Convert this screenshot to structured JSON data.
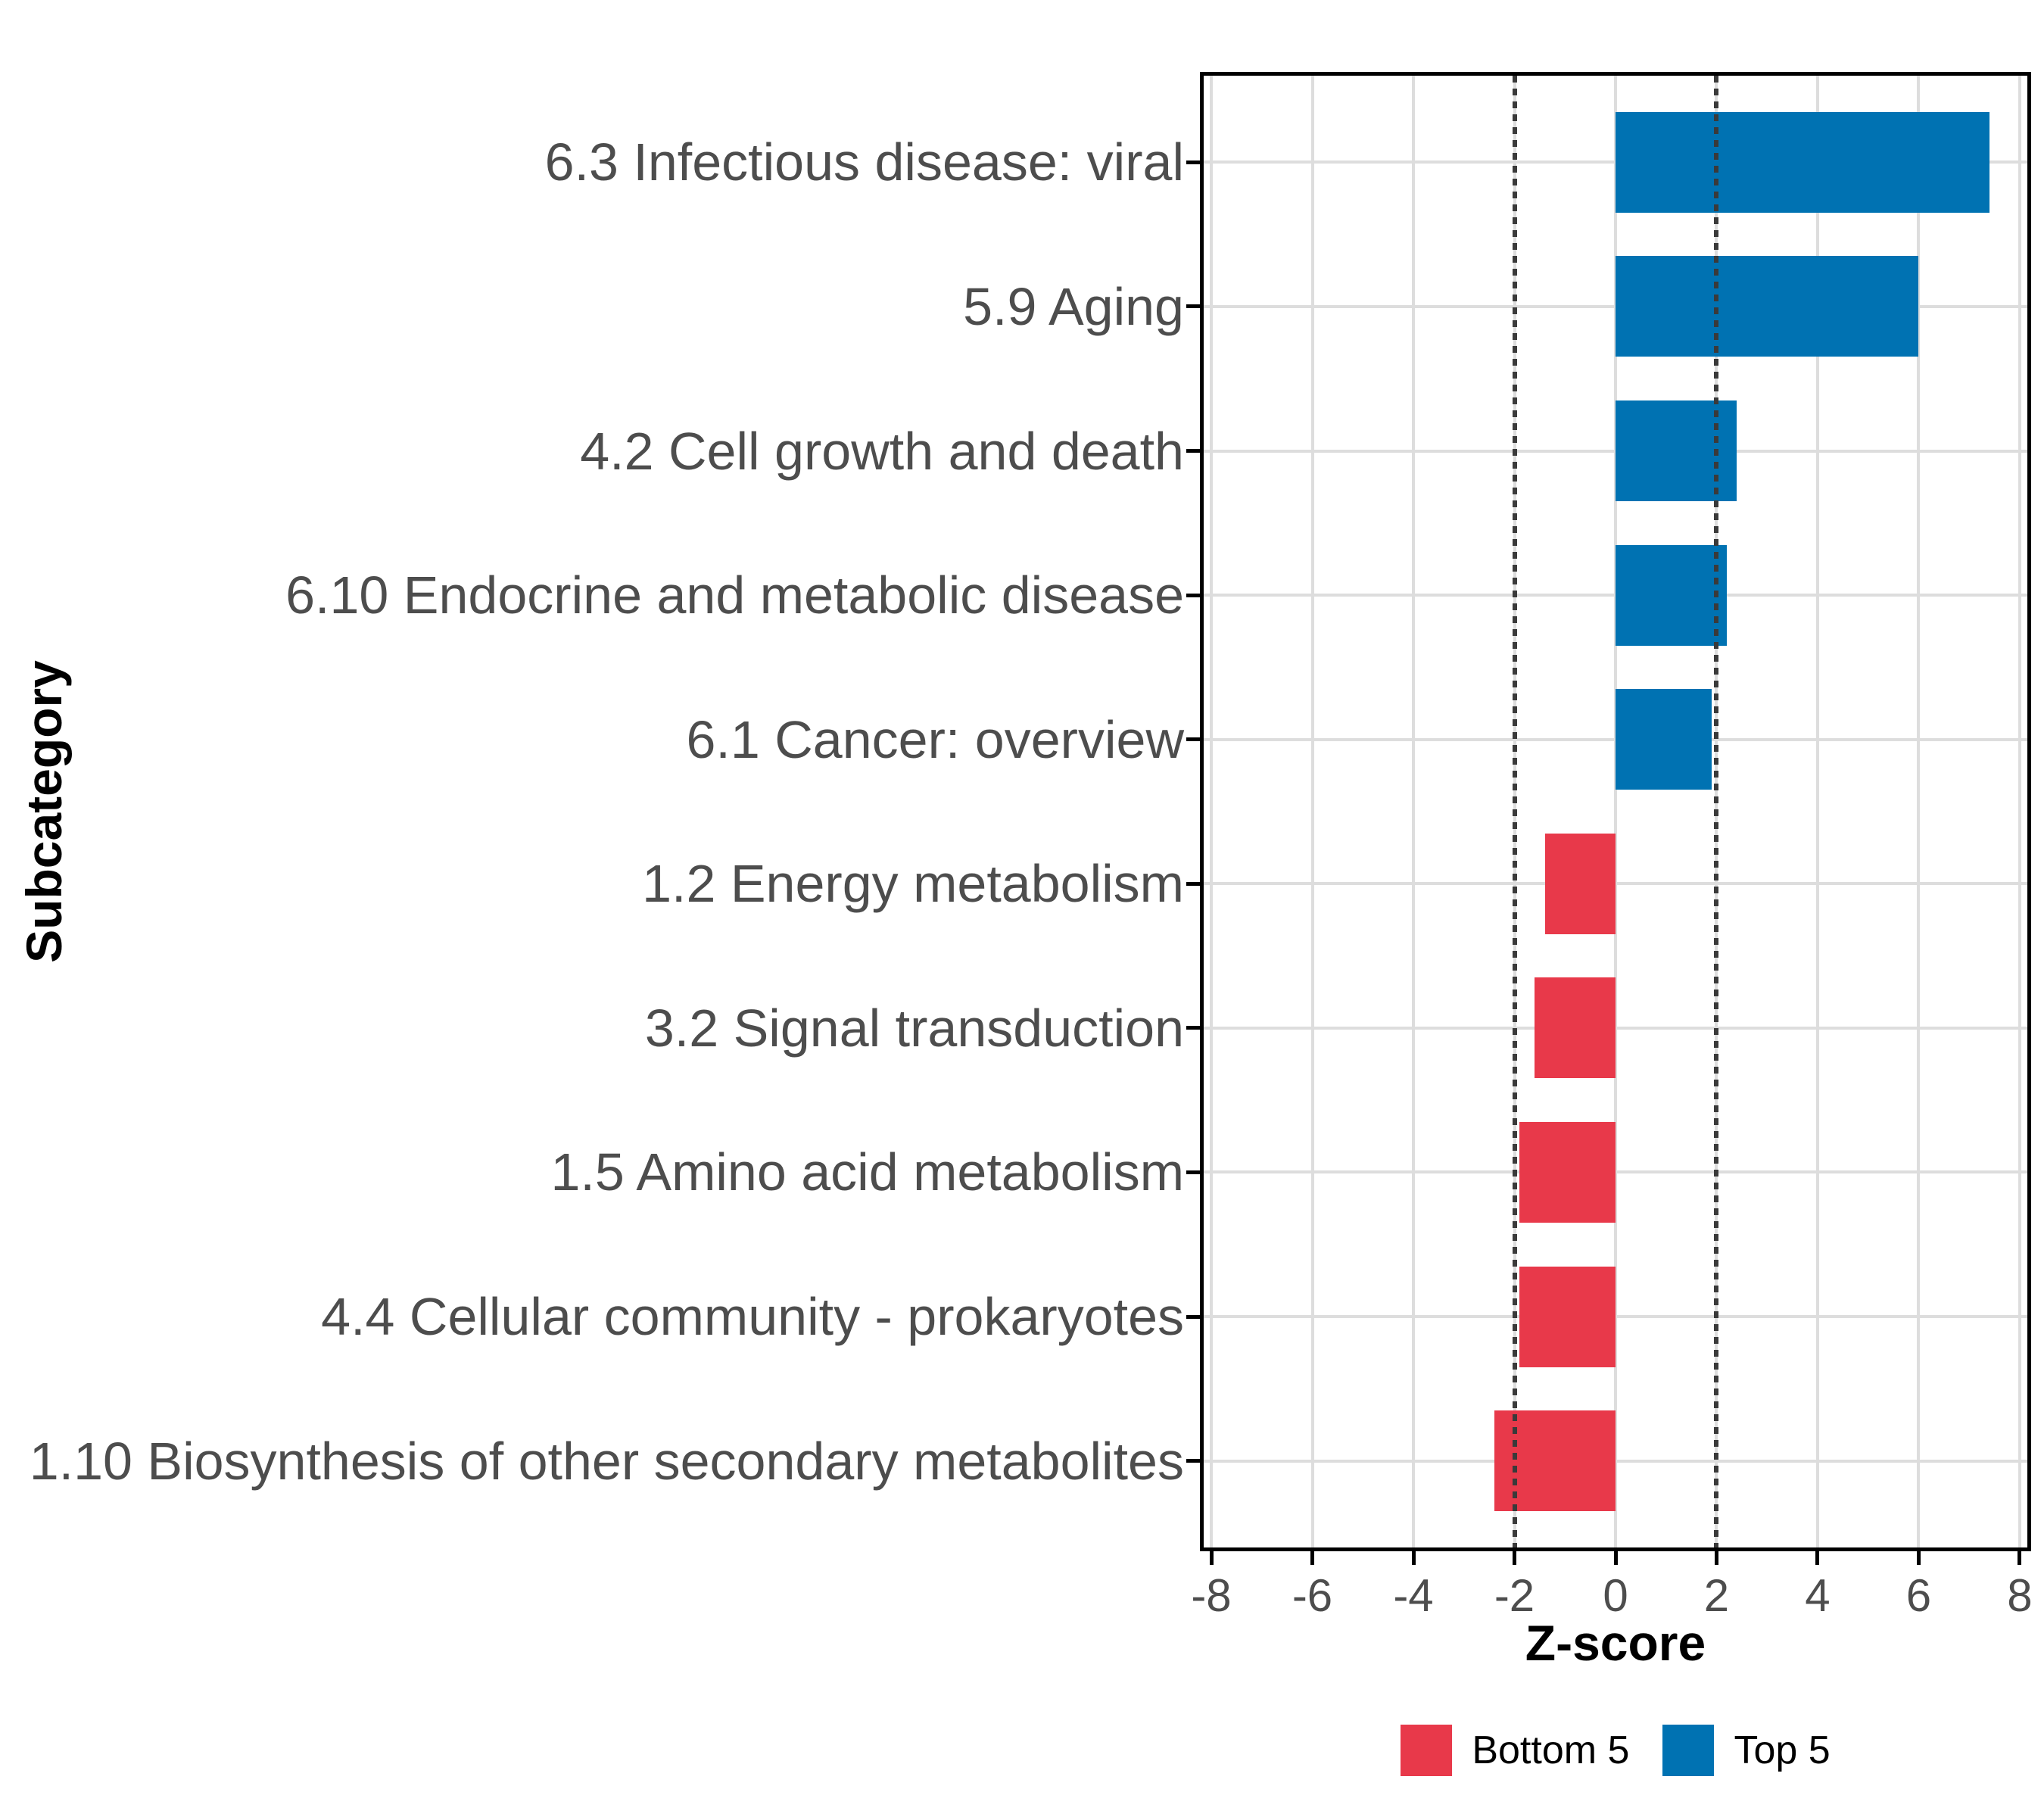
{
  "chart_data": {
    "type": "bar",
    "orientation": "horizontal",
    "title": "",
    "xlabel": "Z-score",
    "ylabel": "Subcategory",
    "xlim": [
      -8.15,
      8.15
    ],
    "x_ticks": [
      -8,
      -6,
      -4,
      -2,
      0,
      2,
      4,
      6,
      8
    ],
    "reference_lines": [
      -2,
      2
    ],
    "grid": "major-only",
    "legend_position": "bottom-center",
    "bars": [
      {
        "category": "6.3 Infectious disease: viral",
        "value": 7.4,
        "group": "Top 5"
      },
      {
        "category": "5.9 Aging",
        "value": 6.0,
        "group": "Top 5"
      },
      {
        "category": "4.2 Cell growth and death",
        "value": 2.4,
        "group": "Top 5"
      },
      {
        "category": "6.10 Endocrine and metabolic disease",
        "value": 2.2,
        "group": "Top 5"
      },
      {
        "category": "6.1 Cancer: overview",
        "value": 1.9,
        "group": "Top 5"
      },
      {
        "category": "1.2 Energy metabolism",
        "value": -1.4,
        "group": "Bottom 5"
      },
      {
        "category": "3.2 Signal transduction",
        "value": -1.6,
        "group": "Bottom 5"
      },
      {
        "category": "1.5 Amino acid metabolism",
        "value": -1.9,
        "group": "Bottom 5"
      },
      {
        "category": "4.4 Cellular community - prokaryotes",
        "value": -1.9,
        "group": "Bottom 5"
      },
      {
        "category": "1.10 Biosynthesis of other secondary metabolites",
        "value": -2.4,
        "group": "Bottom 5"
      }
    ],
    "legend": [
      {
        "label": "Bottom 5",
        "color": "#E8394A"
      },
      {
        "label": "Top 5",
        "color": "#0072B2"
      }
    ],
    "colors": {
      "top5_fill": "#0072B2",
      "bottom5_fill": "#E8394A",
      "gridline": "#DDDDDD",
      "reference_line": "#3A3A3A",
      "axis_text": "#4D4D4D",
      "axis_title": "#000000",
      "panel_border": "#000000",
      "panel_background": "#FFFFFF"
    }
  }
}
